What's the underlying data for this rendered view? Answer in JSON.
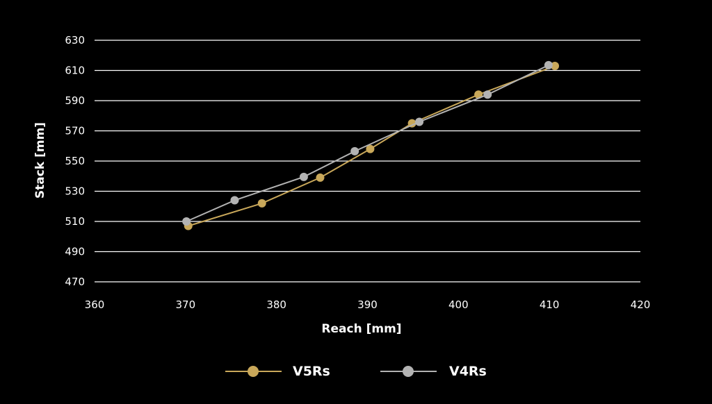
{
  "chart_data": {
    "type": "line",
    "xlabel": "Reach [mm]",
    "ylabel": "Stack [mm]",
    "xlim": [
      360,
      420
    ],
    "ylim": [
      460,
      630
    ],
    "x_ticks": [
      "360",
      "370",
      "380",
      "390",
      "400",
      "410",
      "420"
    ],
    "y_ticks": [
      "470",
      "490",
      "510",
      "530",
      "550",
      "570",
      "590",
      "610",
      "630"
    ],
    "grid": "horizontal",
    "legend_position": "bottom",
    "series": [
      {
        "name": "V5Rs",
        "color": "#c9a85a",
        "points": [
          [
            370.3,
            507
          ],
          [
            378.4,
            522
          ],
          [
            384.8,
            539
          ],
          [
            390.3,
            558
          ],
          [
            394.9,
            575
          ],
          [
            402.2,
            594
          ],
          [
            410.6,
            613
          ]
        ]
      },
      {
        "name": "V4Rs",
        "color": "#b3b3b3",
        "points": [
          [
            370.1,
            510
          ],
          [
            375.4,
            524
          ],
          [
            383.0,
            539.5
          ],
          [
            388.6,
            556.5
          ],
          [
            395.7,
            576
          ],
          [
            403.2,
            594
          ],
          [
            409.9,
            613.5
          ]
        ]
      }
    ]
  }
}
